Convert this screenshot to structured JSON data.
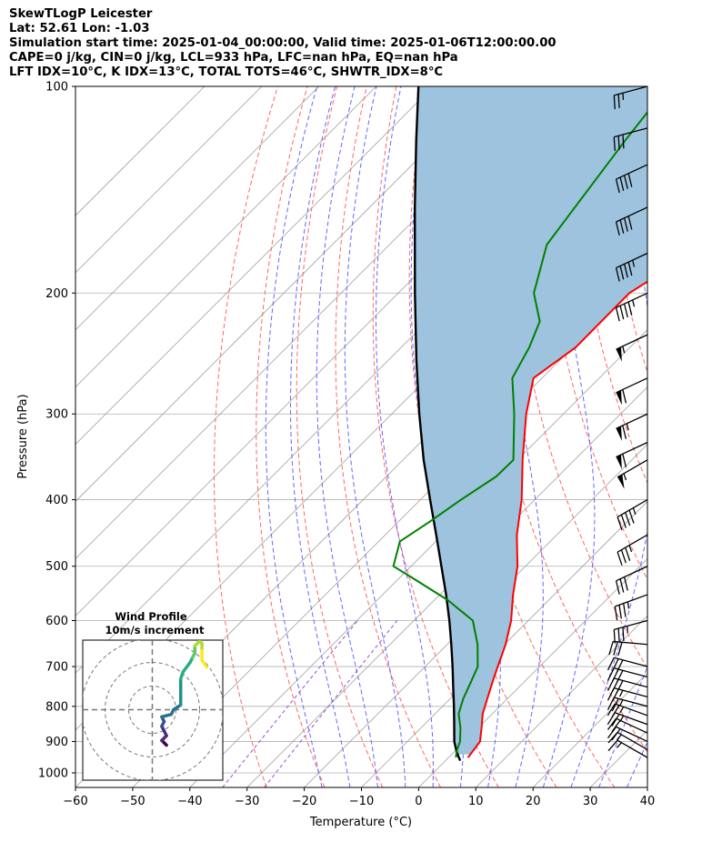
{
  "title_lines": [
    "SkewTLogP Leicester",
    "Lat: 52.61   Lon: -1.03",
    "Simulation start time: 2025-01-04_00:00:00, Valid time: 2025-01-06T12:00:00.00",
    "CAPE=0 j/kg, CIN=0 j/kg, LCL=933 hPa, LFC=nan hPa, EQ=nan hPa",
    "LFT IDX=10$^\\circ$C, K IDX=13$^\\circ$C, TOTAL TOTS=46$^\\circ$C, SHWTR_IDX=8$^\\circ$C"
  ],
  "colors": {
    "temperature": "#ff0000",
    "dewpoint": "#008000",
    "parcel": "#000000",
    "shading": "#9ec3de",
    "isotherm": "#a0a0a0",
    "dry_adiabat": "#ff6666",
    "moist_adiabat": "#6666ff",
    "mixing_ratio": "#9a4fd0"
  },
  "chart_data": {
    "type": "line",
    "title": "SkewTLogP Leicester",
    "xlabel": "Temperature ($^\\circ$C)",
    "ylabel": "Pressure (hPa)",
    "xlim": [
      -60,
      40
    ],
    "ylim": [
      1050,
      100
    ],
    "x_ticks": [
      -60,
      -50,
      -40,
      -30,
      -20,
      -10,
      0,
      10,
      20,
      30,
      40
    ],
    "y_ticks": [
      1000,
      900,
      800,
      700,
      600,
      500,
      400,
      300,
      200,
      100
    ],
    "grid": true,
    "skew_deg": 45,
    "series": [
      {
        "name": "Temperature",
        "p": [
          950,
          900,
          860,
          820,
          780,
          740,
          700,
          650,
          600,
          550,
          500,
          450,
          400,
          350,
          300,
          266,
          240,
          200,
          187,
          160,
          130,
          110,
          100
        ],
        "t": [
          3.4,
          2.7,
          0.6,
          -1.7,
          -3.5,
          -5.4,
          -7.3,
          -9.8,
          -13.0,
          -17.2,
          -21.4,
          -27.0,
          -32.3,
          -39.1,
          -46.5,
          -51.5,
          -49.5,
          -49.6,
          -47.5,
          -51.0,
          -56.0,
          -61.0,
          -65.0
        ]
      },
      {
        "name": "Dewpoint",
        "p": [
          950,
          930,
          900,
          860,
          820,
          780,
          740,
          700,
          650,
          600,
          560,
          520,
          500,
          460,
          430,
          400,
          370,
          350,
          300,
          266,
          240,
          220,
          200,
          170,
          140,
          120,
          100
        ],
        "t": [
          1.3,
          0.3,
          -0.8,
          -3.1,
          -5.9,
          -7.7,
          -9.2,
          -10.8,
          -14.7,
          -19.7,
          -27.7,
          -37.7,
          -43.1,
          -46.3,
          -44.5,
          -42.9,
          -40.8,
          -40.7,
          -48.6,
          -55.2,
          -57.6,
          -60.3,
          -66.3,
          -72.5,
          -75.0,
          -77.0,
          -79.0
        ]
      },
      {
        "name": "Parcel",
        "p": [
          960,
          933,
          900,
          850,
          800,
          750,
          700,
          650,
          600,
          550,
          500,
          450,
          400,
          350,
          300,
          250,
          200,
          150,
          120,
          100
        ],
        "t": [
          2.6,
          0.5,
          -1.8,
          -4.8,
          -8.0,
          -11.5,
          -15.2,
          -19.3,
          -23.8,
          -28.9,
          -34.7,
          -41.1,
          -48.3,
          -56.4,
          -65.2,
          -75.2,
          -87.1,
          -102.1,
          -113.5,
          -122.6
        ]
      }
    ],
    "wind_barbs": {
      "p": [
        950,
        925,
        900,
        875,
        850,
        825,
        800,
        775,
        750,
        725,
        700,
        650,
        600,
        550,
        500,
        450,
        400,
        350,
        330,
        300,
        266,
        230,
        200,
        175,
        150,
        130,
        115,
        100
      ],
      "speed_kt": [
        15,
        15,
        20,
        20,
        25,
        25,
        25,
        25,
        30,
        30,
        30,
        30,
        35,
        35,
        30,
        35,
        45,
        55,
        60,
        65,
        60,
        55,
        45,
        45,
        40,
        40,
        30,
        25
      ],
      "direction_deg": [
        300,
        300,
        295,
        295,
        290,
        290,
        285,
        285,
        285,
        285,
        285,
        275,
        255,
        250,
        245,
        240,
        240,
        240,
        245,
        245,
        245,
        245,
        245,
        245,
        245,
        245,
        255,
        255
      ]
    },
    "hodograph": {
      "title": "Wind Profile",
      "subtitle": "10m/s increment",
      "rings_ms": [
        10,
        20,
        30
      ],
      "u": [
        6,
        5,
        4,
        6,
        5,
        4,
        5,
        4,
        8,
        9,
        12,
        12,
        12,
        12,
        13,
        16,
        17,
        18,
        18,
        20,
        21,
        21,
        21,
        23
      ],
      "v": [
        -15,
        -14,
        -13,
        -11,
        -9,
        -7,
        -5,
        -3,
        -2,
        0,
        2,
        6,
        9,
        13,
        16,
        20,
        22,
        24,
        27,
        29,
        28,
        25,
        21,
        18
      ]
    }
  }
}
